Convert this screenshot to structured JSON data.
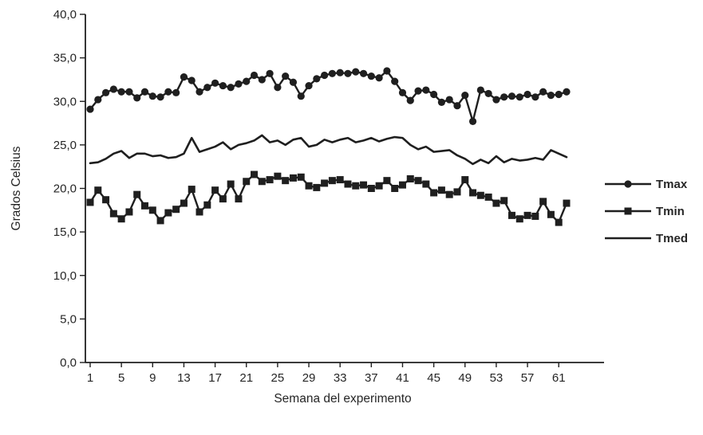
{
  "chart_data": {
    "type": "line",
    "title": "",
    "xlabel": "Semana del experimento",
    "ylabel": "Grados Celsius",
    "xlim": [
      1,
      62
    ],
    "ylim": [
      0,
      40
    ],
    "grid": false,
    "legend_position": "right",
    "series_color": "#1f1f1f",
    "x_ticks": [
      1,
      5,
      9,
      13,
      17,
      21,
      25,
      29,
      33,
      37,
      41,
      45,
      49,
      53,
      57,
      61
    ],
    "y_ticks": [
      0,
      5,
      10,
      15,
      20,
      25,
      30,
      35,
      40
    ],
    "y_tick_labels": [
      "0,0",
      "5,0",
      "10,0",
      "15,0",
      "20,0",
      "25,0",
      "30,0",
      "35,0",
      "40,0"
    ],
    "x": [
      1,
      2,
      3,
      4,
      5,
      6,
      7,
      8,
      9,
      10,
      11,
      12,
      13,
      14,
      15,
      16,
      17,
      18,
      19,
      20,
      21,
      22,
      23,
      24,
      25,
      26,
      27,
      28,
      29,
      30,
      31,
      32,
      33,
      34,
      35,
      36,
      37,
      38,
      39,
      40,
      41,
      42,
      43,
      44,
      45,
      46,
      47,
      48,
      49,
      50,
      51,
      52,
      53,
      54,
      55,
      56,
      57,
      58,
      59,
      60,
      61,
      62
    ],
    "series": [
      {
        "name": "Tmax",
        "marker": "circle",
        "values": [
          29.1,
          30.2,
          31.0,
          31.4,
          31.1,
          31.1,
          30.4,
          31.1,
          30.6,
          30.5,
          31.1,
          31.0,
          32.8,
          32.4,
          31.1,
          31.6,
          32.1,
          31.8,
          31.6,
          32.0,
          32.3,
          33.0,
          32.5,
          33.2,
          31.6,
          32.9,
          32.2,
          30.6,
          31.8,
          32.6,
          33.0,
          33.2,
          33.3,
          33.2,
          33.4,
          33.2,
          32.9,
          32.7,
          33.5,
          32.3,
          31.0,
          30.1,
          31.2,
          31.3,
          30.8,
          29.9,
          30.2,
          29.5,
          30.7,
          27.7,
          31.3,
          30.9,
          30.2,
          30.5,
          30.6,
          30.5,
          30.8,
          30.5,
          31.1,
          30.7,
          30.8,
          31.1
        ]
      },
      {
        "name": "Tmin",
        "marker": "square",
        "values": [
          18.4,
          19.8,
          18.7,
          17.1,
          16.5,
          17.3,
          19.3,
          18.0,
          17.5,
          16.3,
          17.2,
          17.6,
          18.3,
          19.9,
          17.3,
          18.1,
          19.8,
          18.8,
          20.5,
          18.8,
          20.8,
          21.6,
          20.8,
          21.0,
          21.4,
          20.9,
          21.2,
          21.3,
          20.3,
          20.1,
          20.6,
          20.9,
          21.0,
          20.5,
          20.3,
          20.4,
          20.0,
          20.3,
          20.9,
          20.0,
          20.4,
          21.1,
          20.9,
          20.5,
          19.5,
          19.8,
          19.3,
          19.6,
          21.0,
          19.5,
          19.2,
          19.0,
          18.3,
          18.6,
          16.9,
          16.5,
          16.9,
          16.8,
          18.5,
          17.0,
          16.1,
          18.3
        ]
      },
      {
        "name": "Tmed",
        "marker": "none",
        "values": [
          22.9,
          23.0,
          23.4,
          24.0,
          24.3,
          23.5,
          24.0,
          24.0,
          23.7,
          23.8,
          23.5,
          23.6,
          24.0,
          25.8,
          24.2,
          24.5,
          24.8,
          25.3,
          24.5,
          25.0,
          25.2,
          25.5,
          26.1,
          25.3,
          25.5,
          25.0,
          25.6,
          25.8,
          24.8,
          25.0,
          25.6,
          25.3,
          25.6,
          25.8,
          25.3,
          25.5,
          25.8,
          25.4,
          25.7,
          25.9,
          25.8,
          25.0,
          24.5,
          24.8,
          24.2,
          24.3,
          24.4,
          23.8,
          23.4,
          22.8,
          23.3,
          22.9,
          23.7,
          23.0,
          23.4,
          23.2,
          23.3,
          23.5,
          23.3,
          24.4,
          24.0,
          23.6
        ]
      }
    ]
  }
}
